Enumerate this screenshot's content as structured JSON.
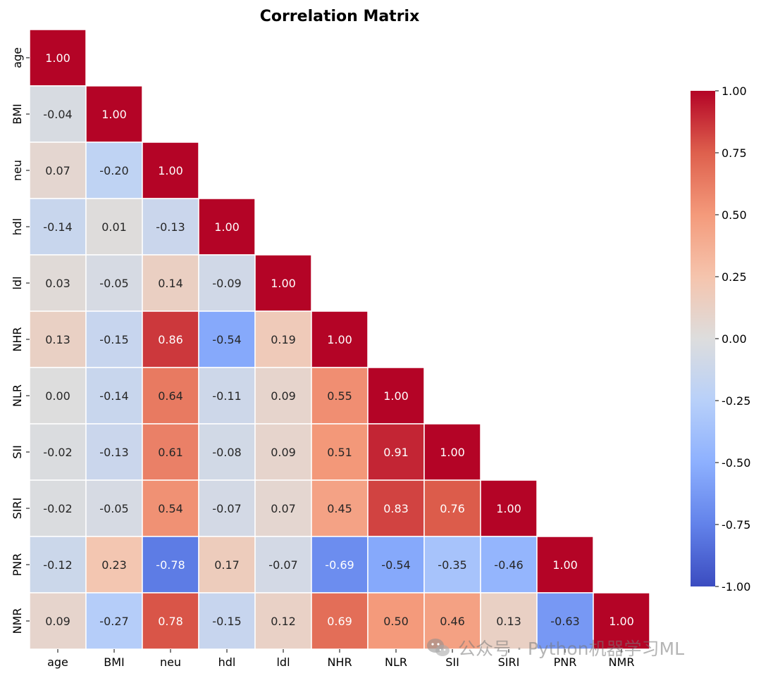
{
  "chart_data": {
    "type": "heatmap",
    "title": "Correlation Matrix",
    "labels": [
      "age",
      "BMI",
      "neu",
      "hdl",
      "ldl",
      "NHR",
      "NLR",
      "SII",
      "SIRI",
      "PNR",
      "NMR"
    ],
    "matrix": [
      [
        1.0
      ],
      [
        -0.04,
        1.0
      ],
      [
        0.07,
        -0.2,
        1.0
      ],
      [
        -0.14,
        0.01,
        -0.13,
        1.0
      ],
      [
        0.03,
        -0.05,
        0.14,
        -0.09,
        1.0
      ],
      [
        0.13,
        -0.15,
        0.86,
        -0.54,
        0.19,
        1.0
      ],
      [
        0.0,
        -0.14,
        0.64,
        -0.11,
        0.09,
        0.55,
        1.0
      ],
      [
        -0.02,
        -0.13,
        0.61,
        -0.08,
        0.09,
        0.51,
        0.91,
        1.0
      ],
      [
        -0.02,
        -0.05,
        0.54,
        -0.07,
        0.07,
        0.45,
        0.83,
        0.76,
        1.0
      ],
      [
        -0.12,
        0.23,
        -0.78,
        0.17,
        -0.07,
        -0.69,
        -0.54,
        -0.35,
        -0.46,
        1.0
      ],
      [
        0.09,
        -0.27,
        0.78,
        -0.15,
        0.12,
        0.69,
        0.5,
        0.46,
        0.13,
        -0.63,
        1.0
      ]
    ],
    "mask": "upper-triangle",
    "colormap": "coolwarm",
    "vmin": -1.0,
    "vmax": 1.0,
    "colorbar_ticks": [
      "1.00",
      "0.75",
      "0.50",
      "0.25",
      "0.00",
      "-0.25",
      "-0.50",
      "-0.75",
      "-1.00"
    ],
    "colorbar_tick_values": [
      1.0,
      0.75,
      0.5,
      0.25,
      0.0,
      -0.25,
      -0.5,
      -0.75,
      -1.0
    ],
    "legend_position": "right"
  },
  "watermark": {
    "text": "公众号 · Python机器学习ML",
    "icon": "wechat-icon"
  }
}
